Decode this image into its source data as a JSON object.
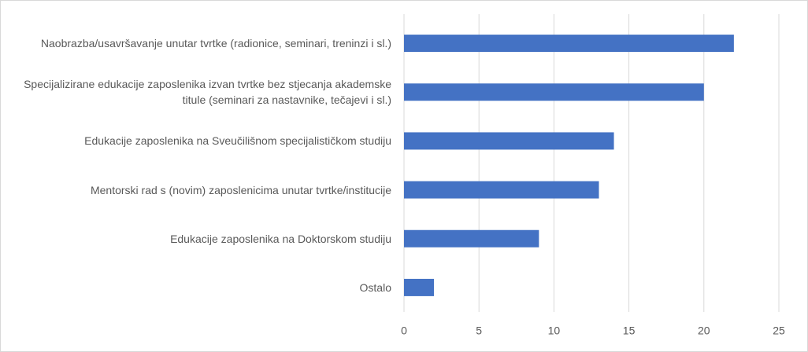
{
  "chart_data": {
    "type": "bar",
    "orientation": "horizontal",
    "categories": [
      "Naobrazba/usavršavanje unutar tvrtke (radionice, seminari, treninzi i sl.)",
      "Specijalizirane edukacije zaposlenika izvan tvrtke bez stjecanja akademske titule (seminari za nastavnike, tečajevi i sl.)",
      "Edukacije zaposlenika na Sveučilišnom specijalističkom studiju",
      "Mentorski rad s (novim) zaposlenicima unutar tvrtke/institucije",
      "Edukacije zaposlenika na Doktorskom studiju",
      "Ostalo"
    ],
    "values": [
      22,
      20,
      14,
      13,
      9,
      2
    ],
    "color": "#4472c4",
    "xlim": [
      0,
      25
    ],
    "xticks": [
      0,
      5,
      10,
      15,
      20,
      25
    ],
    "grid": true
  }
}
